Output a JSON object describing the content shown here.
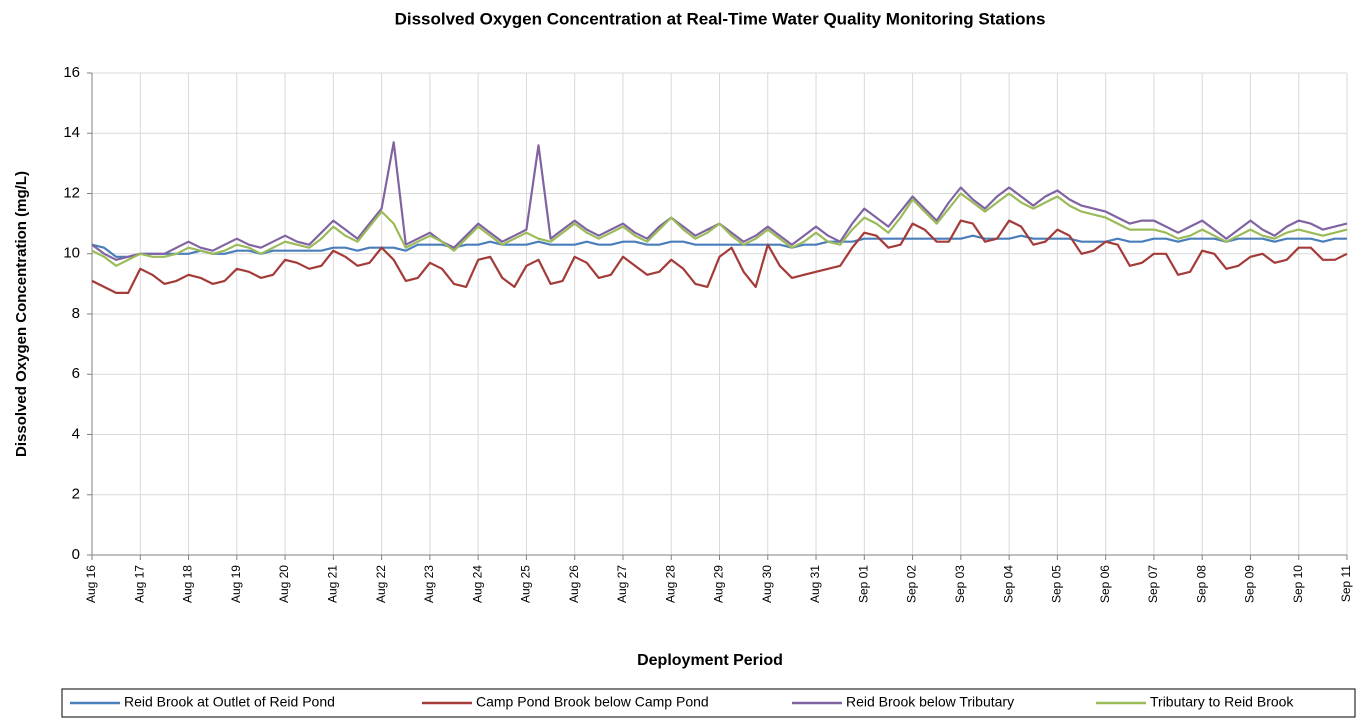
{
  "chart_data": {
    "type": "line",
    "title": "Dissolved Oxygen Concentration at Real-Time Water Quality Monitoring Stations",
    "x_label": "Deployment Period",
    "y_label": "Dissolved Oxygen Concentration (mg/L)",
    "categories": [
      "Aug 16",
      null,
      null,
      null,
      "Aug 17",
      null,
      null,
      null,
      "Aug 18",
      null,
      null,
      null,
      "Aug 19",
      null,
      null,
      null,
      "Aug 20",
      null,
      null,
      null,
      "Aug 21",
      null,
      null,
      null,
      "Aug 22",
      null,
      null,
      null,
      "Aug 23",
      null,
      null,
      null,
      "Aug 24",
      null,
      null,
      null,
      "Aug 25",
      null,
      null,
      null,
      "Aug 26",
      null,
      null,
      null,
      "Aug 27",
      null,
      null,
      null,
      "Aug 28",
      null,
      null,
      null,
      "Aug 29",
      null,
      null,
      null,
      "Aug 30",
      null,
      null,
      null,
      "Aug 31",
      null,
      null,
      null,
      "Sep 01",
      null,
      null,
      null,
      "Sep 02",
      null,
      null,
      null,
      "Sep 03",
      null,
      null,
      null,
      "Sep 04",
      null,
      null,
      null,
      "Sep 05",
      null,
      null,
      null,
      "Sep 06",
      null,
      null,
      null,
      "Sep 07",
      null,
      null,
      null,
      "Sep 08",
      null,
      null,
      null,
      "Sep 09",
      null,
      null,
      null,
      "Sep 10",
      null,
      null,
      null,
      "Sep 11"
    ],
    "series": [
      {
        "name": "Reid Brook at Outlet of Reid Pond",
        "color": "#4a7ebb",
        "values": [
          10.3,
          10.2,
          9.9,
          9.9,
          10.0,
          10.0,
          10.0,
          10.0,
          10.0,
          10.1,
          10.0,
          10.0,
          10.1,
          10.1,
          10.0,
          10.1,
          10.1,
          10.1,
          10.1,
          10.1,
          10.2,
          10.2,
          10.1,
          10.2,
          10.2,
          10.2,
          10.1,
          10.3,
          10.3,
          10.3,
          10.2,
          10.3,
          10.3,
          10.4,
          10.3,
          10.3,
          10.3,
          10.4,
          10.3,
          10.3,
          10.3,
          10.4,
          10.3,
          10.3,
          10.4,
          10.4,
          10.3,
          10.3,
          10.4,
          10.4,
          10.3,
          10.3,
          10.3,
          10.3,
          10.3,
          10.3,
          10.3,
          10.3,
          10.2,
          10.3,
          10.3,
          10.4,
          10.4,
          10.4,
          10.5,
          10.5,
          10.5,
          10.5,
          10.5,
          10.5,
          10.5,
          10.5,
          10.5,
          10.6,
          10.5,
          10.5,
          10.5,
          10.6,
          10.5,
          10.5,
          10.5,
          10.5,
          10.4,
          10.4,
          10.4,
          10.5,
          10.4,
          10.4,
          10.5,
          10.5,
          10.4,
          10.5,
          10.5,
          10.5,
          10.4,
          10.5,
          10.5,
          10.5,
          10.4,
          10.5,
          10.5,
          10.5,
          10.4,
          10.5,
          10.5
        ]
      },
      {
        "name": "Camp Pond Brook below Camp Pond",
        "color": "#a33b38",
        "values": [
          9.1,
          8.9,
          8.7,
          8.7,
          9.5,
          9.3,
          9.0,
          9.1,
          9.3,
          9.2,
          9.0,
          9.1,
          9.5,
          9.4,
          9.2,
          9.3,
          9.8,
          9.7,
          9.5,
          9.6,
          10.1,
          9.9,
          9.6,
          9.7,
          10.2,
          9.8,
          9.1,
          9.2,
          9.7,
          9.5,
          9.0,
          8.9,
          9.8,
          9.9,
          9.2,
          8.9,
          9.6,
          9.8,
          9.0,
          9.1,
          9.9,
          9.7,
          9.2,
          9.3,
          9.9,
          9.6,
          9.3,
          9.4,
          9.8,
          9.5,
          9.0,
          8.9,
          9.9,
          10.2,
          9.4,
          8.9,
          10.3,
          9.6,
          9.2,
          9.3,
          9.4,
          9.5,
          9.6,
          10.2,
          10.7,
          10.6,
          10.2,
          10.3,
          11.0,
          10.8,
          10.4,
          10.4,
          11.1,
          11.0,
          10.4,
          10.5,
          11.1,
          10.9,
          10.3,
          10.4,
          10.8,
          10.6,
          10.0,
          10.1,
          10.4,
          10.3,
          9.6,
          9.7,
          10.0,
          10.0,
          9.3,
          9.4,
          10.1,
          10.0,
          9.5,
          9.6,
          9.9,
          10.0,
          9.7,
          9.8,
          10.2,
          10.2,
          9.8,
          9.8,
          10.0
        ]
      },
      {
        "name": "Reid Brook below Tributary",
        "color": "#8064a2",
        "values": [
          10.3,
          10.0,
          9.8,
          9.9,
          10.0,
          10.0,
          10.0,
          10.2,
          10.4,
          10.2,
          10.1,
          10.3,
          10.5,
          10.3,
          10.2,
          10.4,
          10.6,
          10.4,
          10.3,
          10.7,
          11.1,
          10.8,
          10.5,
          11.0,
          11.5,
          13.7,
          10.3,
          10.5,
          10.7,
          10.4,
          10.2,
          10.6,
          11.0,
          10.7,
          10.4,
          10.6,
          10.8,
          13.6,
          10.5,
          10.8,
          11.1,
          10.8,
          10.6,
          10.8,
          11.0,
          10.7,
          10.5,
          10.9,
          11.2,
          10.9,
          10.6,
          10.8,
          11.0,
          10.7,
          10.4,
          10.6,
          10.9,
          10.6,
          10.3,
          10.6,
          10.9,
          10.6,
          10.4,
          11.0,
          11.5,
          11.2,
          10.9,
          11.4,
          11.9,
          11.5,
          11.1,
          11.7,
          12.2,
          11.8,
          11.5,
          11.9,
          12.2,
          11.9,
          11.6,
          11.9,
          12.1,
          11.8,
          11.6,
          11.5,
          11.4,
          11.2,
          11.0,
          11.1,
          11.1,
          10.9,
          10.7,
          10.9,
          11.1,
          10.8,
          10.5,
          10.8,
          11.1,
          10.8,
          10.6,
          10.9,
          11.1,
          11.0,
          10.8,
          10.9,
          11.0
        ]
      },
      {
        "name": "Tributary to Reid Brook",
        "color": "#9bbb59",
        "values": [
          10.1,
          9.9,
          9.6,
          9.8,
          10.0,
          9.9,
          9.9,
          10.0,
          10.2,
          10.1,
          10.0,
          10.1,
          10.3,
          10.2,
          10.0,
          10.2,
          10.4,
          10.3,
          10.2,
          10.5,
          10.9,
          10.6,
          10.4,
          10.9,
          11.4,
          11.0,
          10.2,
          10.4,
          10.6,
          10.4,
          10.1,
          10.5,
          10.9,
          10.6,
          10.3,
          10.5,
          10.7,
          10.5,
          10.4,
          10.7,
          11.0,
          10.7,
          10.5,
          10.7,
          10.9,
          10.6,
          10.4,
          10.8,
          11.2,
          10.8,
          10.5,
          10.7,
          11.0,
          10.6,
          10.3,
          10.5,
          10.8,
          10.5,
          10.2,
          10.4,
          10.7,
          10.4,
          10.3,
          10.8,
          11.2,
          11.0,
          10.7,
          11.2,
          11.8,
          11.4,
          11.0,
          11.5,
          12.0,
          11.7,
          11.4,
          11.7,
          12.0,
          11.7,
          11.5,
          11.7,
          11.9,
          11.6,
          11.4,
          11.3,
          11.2,
          11.0,
          10.8,
          10.8,
          10.8,
          10.7,
          10.5,
          10.6,
          10.8,
          10.6,
          10.4,
          10.6,
          10.8,
          10.6,
          10.5,
          10.7,
          10.8,
          10.7,
          10.6,
          10.7,
          10.8
        ]
      }
    ],
    "ylim": [
      0,
      16
    ],
    "yticks": [
      0,
      2,
      4,
      6,
      8,
      10,
      12,
      14,
      16
    ],
    "grid": true,
    "legend": "bottom"
  }
}
